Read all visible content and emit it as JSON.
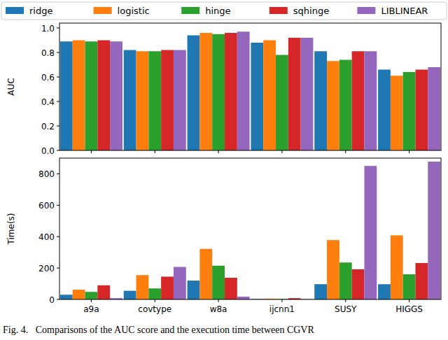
{
  "chart_data": [
    {
      "type": "bar",
      "y_label": "AUC",
      "categories": [
        "a9a",
        "covtype",
        "w8a",
        "ijcnn1",
        "SUSY",
        "HIGGS"
      ],
      "series": [
        {
          "name": "ridge",
          "color": "#1f77b4",
          "values": [
            0.89,
            0.82,
            0.94,
            0.88,
            0.81,
            0.66
          ]
        },
        {
          "name": "logistic",
          "color": "#ff7f0e",
          "values": [
            0.9,
            0.81,
            0.96,
            0.9,
            0.73,
            0.61
          ]
        },
        {
          "name": "hinge",
          "color": "#2ca02c",
          "values": [
            0.89,
            0.81,
            0.95,
            0.78,
            0.74,
            0.64
          ]
        },
        {
          "name": "sqhinge",
          "color": "#d62728",
          "values": [
            0.9,
            0.82,
            0.96,
            0.92,
            0.81,
            0.66
          ]
        },
        {
          "name": "LIBLINEAR",
          "color": "#9467bd",
          "values": [
            0.89,
            0.82,
            0.97,
            0.92,
            0.81,
            0.68
          ]
        }
      ],
      "ylim": [
        0,
        1.04
      ],
      "yticks": [
        {
          "value": 0,
          "label": "0.0"
        },
        {
          "value": 0.2,
          "label": "0.2"
        },
        {
          "value": 0.4,
          "label": "0.4"
        },
        {
          "value": 0.6,
          "label": "0.6"
        },
        {
          "value": 0.8,
          "label": "0.8"
        },
        {
          "value": 1,
          "label": "1.0"
        }
      ],
      "grid": false,
      "legend": "top",
      "tick_labels": "y"
    },
    {
      "type": "bar",
      "y_label": "Time(s)",
      "categories": [
        "a9a",
        "covtype",
        "w8a",
        "ijcnn1",
        "SUSY",
        "HIGGS"
      ],
      "series": [
        {
          "color": "#1f77b4",
          "values": [
            30,
            55,
            120,
            3,
            97,
            97
          ]
        },
        {
          "color": "#ff7f0e",
          "values": [
            62,
            155,
            322,
            5,
            378,
            408
          ]
        },
        {
          "color": "#2ca02c",
          "values": [
            48,
            70,
            215,
            3,
            235,
            160
          ]
        },
        {
          "color": "#d62728",
          "values": [
            90,
            145,
            138,
            8,
            192,
            232
          ]
        },
        {
          "color": "#9467bd",
          "values": [
            8,
            207,
            18,
            3,
            850,
            878
          ]
        }
      ],
      "ylim": [
        0,
        900
      ],
      "yticks": [
        0,
        200,
        400,
        600,
        800
      ],
      "grid": false
    }
  ],
  "caption": "Fig. 4.   Comparisons of the AUC score and the execution time between CGVR"
}
